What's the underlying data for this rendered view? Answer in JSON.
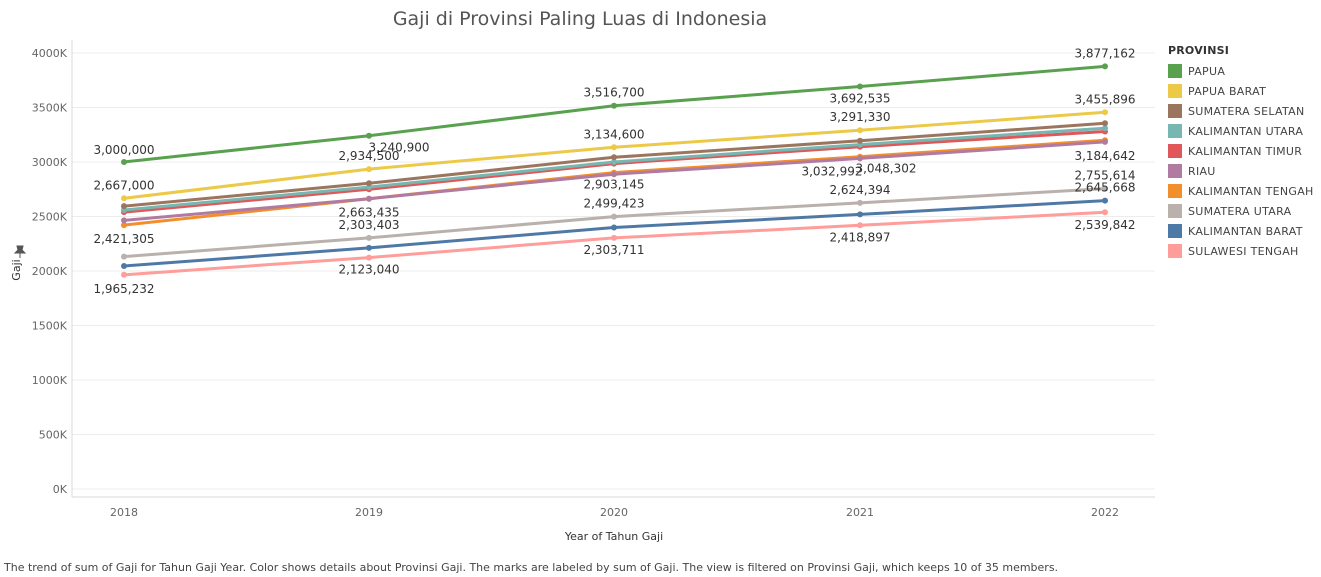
{
  "chart_data": {
    "type": "line",
    "title": "Gaji di Provinsi Paling Luas di Indonesia",
    "xlabel": "Year of Tahun Gaji",
    "ylabel": "Gaji",
    "x": [
      "2018",
      "2019",
      "2020",
      "2021",
      "2022"
    ],
    "ylim": [
      0,
      4000000
    ],
    "yticks": [
      0,
      500000,
      1000000,
      1500000,
      2000000,
      2500000,
      3000000,
      3500000,
      4000000
    ],
    "ytick_labels": [
      "0K",
      "500K",
      "1000K",
      "1500K",
      "2000K",
      "2500K",
      "3000K",
      "3500K",
      "4000K"
    ],
    "grid": true,
    "legend_title": "PROVINSI",
    "legend_position": "right",
    "series": [
      {
        "name": "PAPUA",
        "color": "#59a14f",
        "values": [
          3000000,
          3240900,
          3516700,
          3692535,
          3877162
        ]
      },
      {
        "name": "PAPUA BARAT",
        "color": "#edc948",
        "values": [
          2667000,
          2934500,
          3134600,
          3291330,
          3455896
        ]
      },
      {
        "name": "SUMATERA SELATAN",
        "color": "#9c755f",
        "values": [
          2595000,
          2805000,
          3043000,
          3195000,
          3355000
        ]
      },
      {
        "name": "KALIMANTAN UTARA",
        "color": "#76b7b2",
        "values": [
          2560000,
          2770000,
          3000000,
          3160000,
          3310000
        ]
      },
      {
        "name": "KALIMANTAN TIMUR",
        "color": "#e15759",
        "values": [
          2540000,
          2750000,
          2985000,
          3140000,
          3280000
        ]
      },
      {
        "name": "RIAU",
        "color": "#b07aa1",
        "values": [
          2464000,
          2663435,
          2888000,
          3032992,
          3184642
        ]
      },
      {
        "name": "KALIMANTAN TENGAH",
        "color": "#f28e2b",
        "values": [
          2421305,
          2663435,
          2903145,
          3048302,
          3200000
        ]
      },
      {
        "name": "SUMATERA UTARA",
        "color": "#bab0ac",
        "values": [
          2132000,
          2303403,
          2499423,
          2624394,
          2755614
        ]
      },
      {
        "name": "KALIMANTAN BARAT",
        "color": "#4e79a7",
        "values": [
          2046000,
          2211500,
          2399000,
          2519000,
          2645668
        ]
      },
      {
        "name": "SULAWESI TENGAH",
        "color": "#ff9d9a",
        "values": [
          1965232,
          2123040,
          2303711,
          2418897,
          2539842
        ]
      }
    ],
    "data_labels": [
      {
        "series": "PAPUA",
        "x": "2018",
        "text": "3,000,000"
      },
      {
        "series": "PAPUA",
        "x": "2019",
        "text": "3,240,900"
      },
      {
        "series": "PAPUA",
        "x": "2020",
        "text": "3,516,700"
      },
      {
        "series": "PAPUA",
        "x": "2021",
        "text": "3,692,535"
      },
      {
        "series": "PAPUA",
        "x": "2022",
        "text": "3,877,162"
      },
      {
        "series": "PAPUA BARAT",
        "x": "2018",
        "text": "2,667,000"
      },
      {
        "series": "PAPUA BARAT",
        "x": "2019",
        "text": "2,934,500"
      },
      {
        "series": "PAPUA BARAT",
        "x": "2020",
        "text": "3,134,600"
      },
      {
        "series": "PAPUA BARAT",
        "x": "2021",
        "text": "3,291,330"
      },
      {
        "series": "PAPUA BARAT",
        "x": "2022",
        "text": "3,455,896"
      },
      {
        "series": "KALIMANTAN TENGAH",
        "x": "2018",
        "text": "2,421,305"
      },
      {
        "series": "KALIMANTAN TENGAH",
        "x": "2019",
        "text": "2,663,435"
      },
      {
        "series": "KALIMANTAN TENGAH",
        "x": "2020",
        "text": "2,903,145"
      },
      {
        "series": "RIAU",
        "x": "2021",
        "text": "3,032,992"
      },
      {
        "series": "KALIMANTAN TENGAH",
        "x": "2021",
        "text": "3,048,302"
      },
      {
        "series": "RIAU",
        "x": "2022",
        "text": "3,184,642"
      },
      {
        "series": "SUMATERA UTARA",
        "x": "2019",
        "text": "2,303,403"
      },
      {
        "series": "SUMATERA UTARA",
        "x": "2020",
        "text": "2,499,423"
      },
      {
        "series": "SUMATERA UTARA",
        "x": "2021",
        "text": "2,624,394"
      },
      {
        "series": "SUMATERA UTARA",
        "x": "2022",
        "text": "2,755,614"
      },
      {
        "series": "KALIMANTAN BARAT",
        "x": "2022",
        "text": "2,645,668"
      },
      {
        "series": "SULAWESI TENGAH",
        "x": "2018",
        "text": "1,965,232"
      },
      {
        "series": "SULAWESI TENGAH",
        "x": "2019",
        "text": "2,123,040"
      },
      {
        "series": "SULAWESI TENGAH",
        "x": "2020",
        "text": "2,303,711"
      },
      {
        "series": "SULAWESI TENGAH",
        "x": "2021",
        "text": "2,418,897"
      },
      {
        "series": "SULAWESI TENGAH",
        "x": "2022",
        "text": "2,539,842"
      }
    ]
  },
  "caption": "The trend of sum of Gaji for Tahun Gaji Year.  Color shows details about Provinsi Gaji.  The marks are labeled by sum of Gaji. The view is filtered on Provinsi Gaji, which keeps 10 of 35 members."
}
